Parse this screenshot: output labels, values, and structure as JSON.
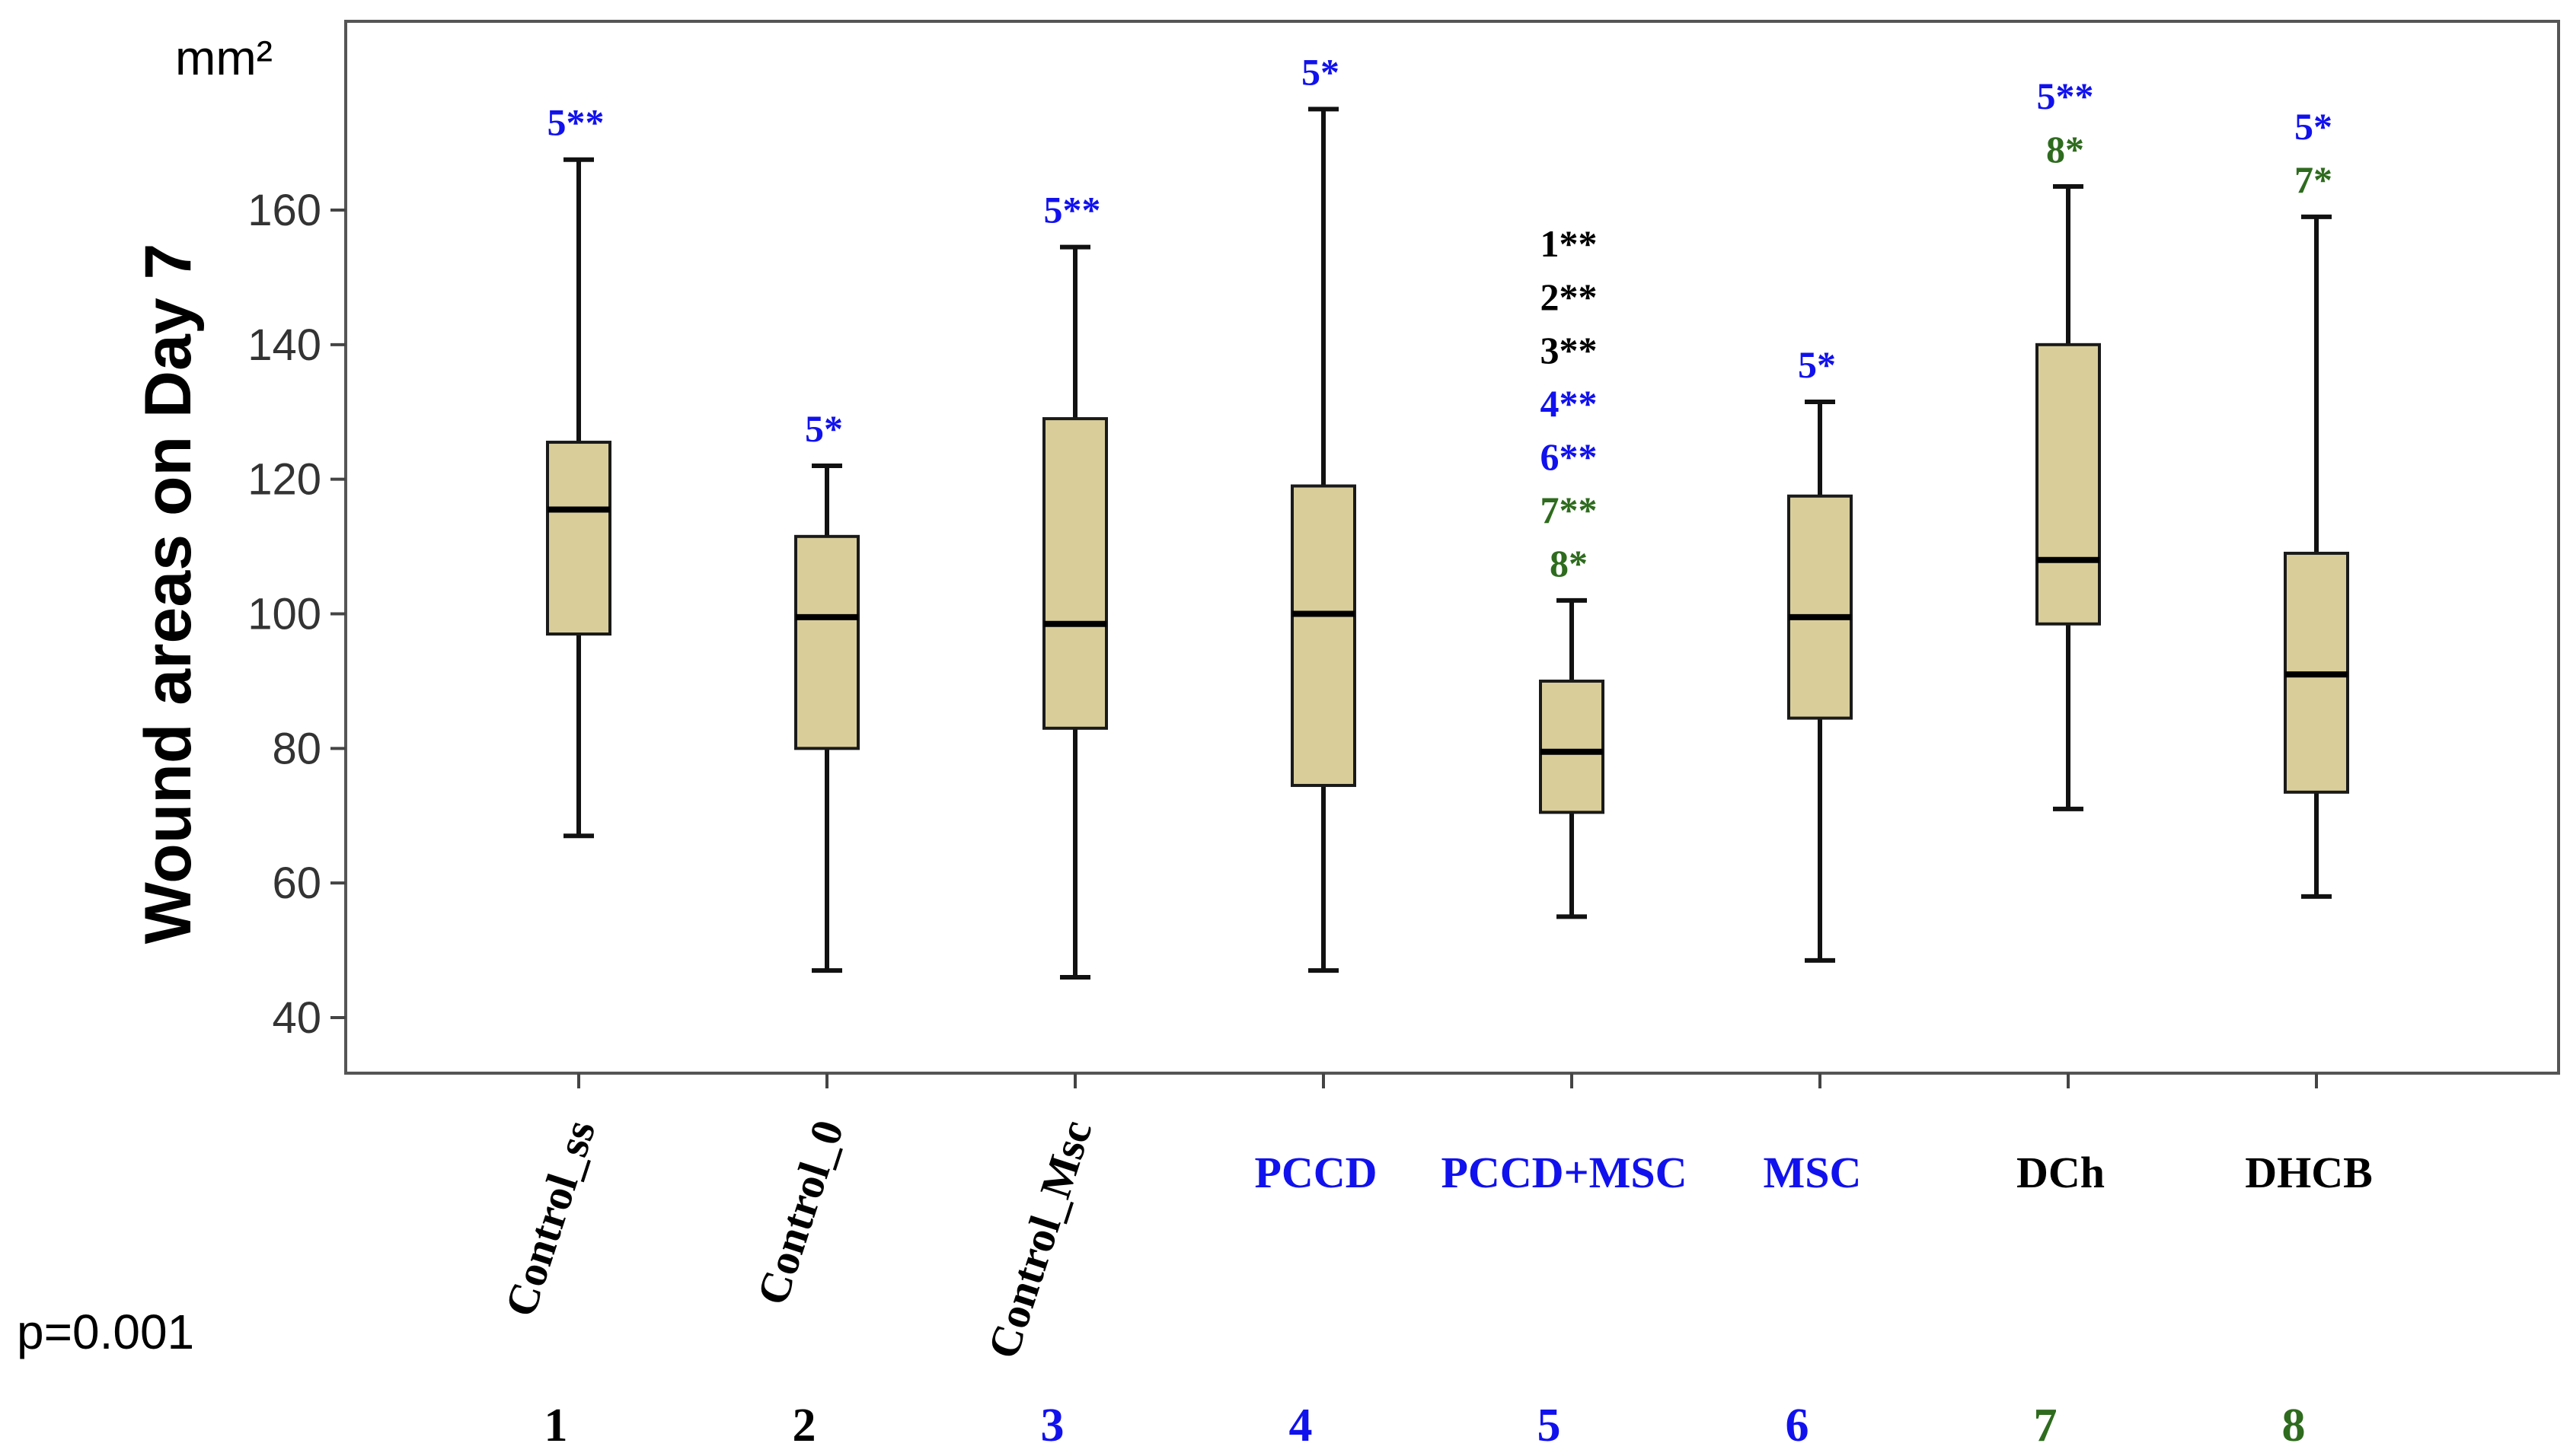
{
  "chart_data": {
    "type": "boxplot",
    "unit": "mm²",
    "ylabel": "Wound areas on Day 7",
    "ylim": [
      35,
      185
    ],
    "yticks": [
      40,
      60,
      80,
      100,
      120,
      140,
      160
    ],
    "p_value": "p=0.001",
    "colors": {
      "box_fill": "#D9CE9A",
      "box_edge": "#1a1a1a",
      "blue": "#1111EE",
      "green": "#2E6B1E",
      "black": "#000000"
    },
    "groups": [
      {
        "index": "1",
        "label": "Control_ss",
        "label_color": "#000000",
        "label_rotated": true,
        "index_color": "#000000",
        "min": 67,
        "q1": 97,
        "median": 115.5,
        "q3": 125.5,
        "max": 167.5,
        "annotations": [
          {
            "text": "5**",
            "color": "#1111EE"
          }
        ]
      },
      {
        "index": "2",
        "label": "Control_0",
        "label_color": "#000000",
        "label_rotated": true,
        "index_color": "#000000",
        "min": 47,
        "q1": 80,
        "median": 99.5,
        "q3": 111.5,
        "max": 122,
        "annotations": [
          {
            "text": "5*",
            "color": "#1111EE"
          }
        ]
      },
      {
        "index": "3",
        "label": "Control_Msc",
        "label_color": "#000000",
        "label_rotated": true,
        "index_color": "#1111EE",
        "min": 46,
        "q1": 83,
        "median": 98.5,
        "q3": 129,
        "max": 154.5,
        "annotations": [
          {
            "text": "5**",
            "color": "#1111EE"
          }
        ]
      },
      {
        "index": "4",
        "label": "PCCD",
        "label_color": "#1111EE",
        "label_rotated": false,
        "index_color": "#1111EE",
        "min": 47,
        "q1": 74.5,
        "median": 100,
        "q3": 119,
        "max": 175,
        "annotations": [
          {
            "text": "5*",
            "color": "#1111EE"
          }
        ]
      },
      {
        "index": "5",
        "label": "PCCD+MSC",
        "label_color": "#1111EE",
        "label_rotated": false,
        "index_color": "#1111EE",
        "min": 55,
        "q1": 70.5,
        "median": 79.5,
        "q3": 90,
        "max": 102,
        "annotations": [
          {
            "text": "1**",
            "color": "#000000"
          },
          {
            "text": "2**",
            "color": "#000000"
          },
          {
            "text": "3**",
            "color": "#000000"
          },
          {
            "text": "4**",
            "color": "#1111EE"
          },
          {
            "text": "6**",
            "color": "#1111EE"
          },
          {
            "text": "7**",
            "color": "#2E6B1E"
          },
          {
            "text": "8*",
            "color": "#2E6B1E"
          }
        ]
      },
      {
        "index": "6",
        "label": "MSC",
        "label_color": "#1111EE",
        "label_rotated": false,
        "index_color": "#1111EE",
        "min": 48.5,
        "q1": 84.5,
        "median": 99.5,
        "q3": 117.5,
        "max": 131.5,
        "annotations": [
          {
            "text": "5*",
            "color": "#1111EE"
          }
        ]
      },
      {
        "index": "7",
        "label": "DCh",
        "label_color": "#000000",
        "label_rotated": false,
        "index_color": "#2E6B1E",
        "min": 71,
        "q1": 98.5,
        "median": 108,
        "q3": 140,
        "max": 163.5,
        "annotations": [
          {
            "text": "5**",
            "color": "#1111EE"
          },
          {
            "text": "8*",
            "color": "#2E6B1E"
          }
        ]
      },
      {
        "index": "8",
        "label": "DHCB",
        "label_color": "#000000",
        "label_rotated": false,
        "index_color": "#2E6B1E",
        "min": 58,
        "q1": 73.5,
        "median": 91,
        "q3": 109,
        "max": 159,
        "annotations": [
          {
            "text": "5*",
            "color": "#1111EE"
          },
          {
            "text": "7*",
            "color": "#2E6B1E"
          }
        ]
      }
    ]
  }
}
